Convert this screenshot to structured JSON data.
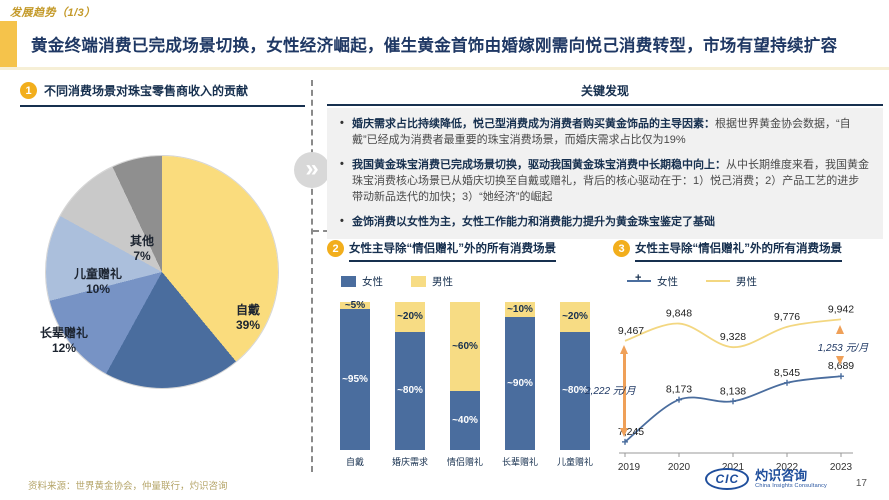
{
  "page": {
    "tag": "发展趋势（1/3）",
    "title": "黄金终端消费已完成场景切换，女性经济崛起，催生黄金首饰由婚嫁刚需向悦己消费转型，市场有望持续扩容",
    "source": "资料来源：世界黄金协会，仲量联行，灼识咨询",
    "page_number": "17",
    "logo": {
      "abbr": "CIC",
      "name_cn": "灼识咨询",
      "name_en": "China Insights Consultancy"
    }
  },
  "colors": {
    "accent_yellow": "#F5C34B",
    "badge_orange": "#F2AE1C",
    "navy": "#1F3864",
    "female_blue": "#4A6D9E",
    "male_yellow": "#F7DC84",
    "arrow_orange": "#EFA058",
    "findings_box_bg": "#F1F1F1"
  },
  "sections": {
    "pie": {
      "badge": "1",
      "heading": "不同消费场景对珠宝零售商收入的贡献"
    },
    "findings": {
      "heading": "关键发现",
      "bullets": [
        {
          "bold": "婚庆需求占比持续降低，悦己型消费成为消费者购买黄金饰品的主导因素：",
          "normal": "根据世界黄金协会数据，“自戴”已经成为消费者最重要的珠宝消费场景，而婚庆需求占比仅为19%"
        },
        {
          "bold": "我国黄金珠宝消费已完成场景切换，驱动我国黄金珠宝消费中长期稳中向上：",
          "normal": "从中长期维度来看，我国黄金珠宝消费核心场景已从婚庆切换至自戴或赠礼，背后的核心驱动在于：1）悦己消费；2）产品工艺的进步带动新品迭代的加快；3）“她经济”的崛起"
        },
        {
          "bold": "金饰消费以女性为主，女性工作能力和消费能力提升为黄金珠宝鉴定了基础",
          "normal": ""
        }
      ]
    },
    "bar": {
      "badge": "2",
      "heading": "女性主导除“情侣赠礼”外的所有消费场景",
      "legend": [
        "女性",
        "男性"
      ]
    },
    "line": {
      "badge": "3",
      "heading": "女性主导除“情侣赠礼”外的所有消费场景",
      "legend": [
        "女性",
        "男性"
      ]
    }
  },
  "chart_data": [
    {
      "type": "pie",
      "title": "不同消费场景对珠宝零售商收入的贡献",
      "slices": [
        {
          "label": "自戴",
          "value": 39,
          "pct_label": "39%",
          "color": "#FADC7D"
        },
        {
          "label": "婚庆需求",
          "value": 19,
          "pct_label": "19%",
          "color": "#4A6D9E"
        },
        {
          "label": "情侣赠礼",
          "value": 13,
          "pct_label": "13%",
          "color": "#7793C5"
        },
        {
          "label": "长辈赠礼",
          "value": 12,
          "pct_label": "12%",
          "color": "#ABBFDC"
        },
        {
          "label": "儿童赠礼",
          "value": 10,
          "pct_label": "10%",
          "color": "#C9C9C9"
        },
        {
          "label": "其他",
          "value": 7,
          "pct_label": "7%",
          "color": "#8F8F8F"
        }
      ]
    },
    {
      "type": "bar",
      "stacked_percent": true,
      "title": "女性主导除“情侣赠礼”外的所有消费场景",
      "categories": [
        "自戴",
        "婚庆需求",
        "情侣赠礼",
        "长辈赠礼",
        "儿童赠礼"
      ],
      "series": [
        {
          "name": "女性",
          "color": "#4A6D9E",
          "values": [
            95,
            80,
            40,
            90,
            80
          ],
          "labels": [
            "~95%",
            "~80%",
            "~40%",
            "~90%",
            "~80%"
          ]
        },
        {
          "name": "男性",
          "color": "#F7DC84",
          "values": [
            5,
            20,
            60,
            10,
            20
          ],
          "labels": [
            "~5%",
            "~20%",
            "~60%",
            "~10%",
            "~20%"
          ]
        }
      ],
      "ylim": [
        0,
        100
      ]
    },
    {
      "type": "line",
      "title": "女性主导除“情侣赠礼”外的所有消费场景",
      "x": [
        "2019",
        "2020",
        "2021",
        "2022",
        "2023"
      ],
      "series": [
        {
          "name": "女性",
          "color": "#4A6D9E",
          "marker": "plus",
          "values": [
            7245,
            8173,
            8138,
            8545,
            8689
          ]
        },
        {
          "name": "男性",
          "color": "#F3D781",
          "marker": "none",
          "values": [
            9467,
            9848,
            9328,
            9776,
            9942
          ]
        }
      ],
      "ylim": [
        7000,
        10300
      ],
      "annotations": [
        {
          "x": "2019",
          "text": "2,222 元/月"
        },
        {
          "x": "2023",
          "text": "1,253 元/月"
        }
      ],
      "legend_position": "top-left",
      "grid": false
    }
  ]
}
